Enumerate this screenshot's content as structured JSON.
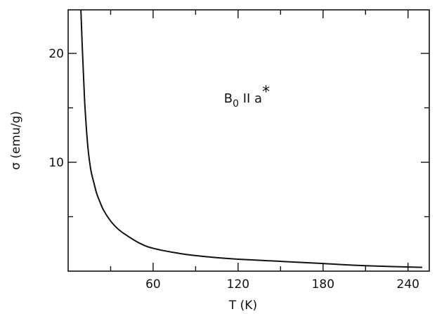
{
  "chart_data": {
    "type": "line",
    "title": "",
    "xlabel": "T (K)",
    "ylabel": "σ (emu/g)",
    "xlim": [
      0,
      255
    ],
    "ylim": [
      0,
      24
    ],
    "x_major_ticks": [
      60,
      120,
      180,
      240
    ],
    "x_minor_ticks": [
      30,
      90,
      150,
      210
    ],
    "y_major_ticks": [
      10,
      20
    ],
    "y_minor_ticks": [
      5,
      15
    ],
    "x_tick_labels": [
      "60",
      "120",
      "180",
      "240"
    ],
    "y_tick_labels": [
      "10",
      "20"
    ],
    "grid": false,
    "annotation": {
      "main": "B",
      "subscript": "0",
      "rest": " II a",
      "superscript": "*",
      "x": 110,
      "y": 15.5
    },
    "series": [
      {
        "name": "",
        "x": [
          9,
          10,
          11,
          12,
          14,
          16,
          18,
          20,
          22,
          25,
          30,
          35,
          40,
          50,
          60,
          80,
          100,
          120,
          150,
          180,
          210,
          250
        ],
        "y": [
          24,
          20.5,
          17.5,
          14.8,
          11.3,
          9.3,
          8.2,
          7.2,
          6.5,
          5.6,
          4.6,
          3.9,
          3.4,
          2.6,
          2.1,
          1.6,
          1.3,
          1.1,
          0.9,
          0.7,
          0.5,
          0.35
        ]
      }
    ]
  }
}
